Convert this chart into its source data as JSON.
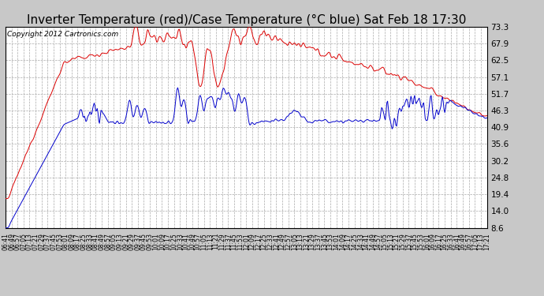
{
  "title": "Inverter Temperature (red)/Case Temperature (°C blue) Sat Feb 18 17:30",
  "copyright": "Copyright 2012 Cartronics.com",
  "yticks": [
    8.6,
    14.0,
    19.4,
    24.8,
    30.2,
    35.6,
    40.9,
    46.3,
    51.7,
    57.1,
    62.5,
    67.9,
    73.3
  ],
  "ylim": [
    8.6,
    73.3
  ],
  "fig_bg_color": "#c8c8c8",
  "plot_bg": "#ffffff",
  "red_color": "#dd0000",
  "blue_color": "#0000cc",
  "title_fontsize": 11,
  "copyright_fontsize": 6.5,
  "tick_interval": 8
}
